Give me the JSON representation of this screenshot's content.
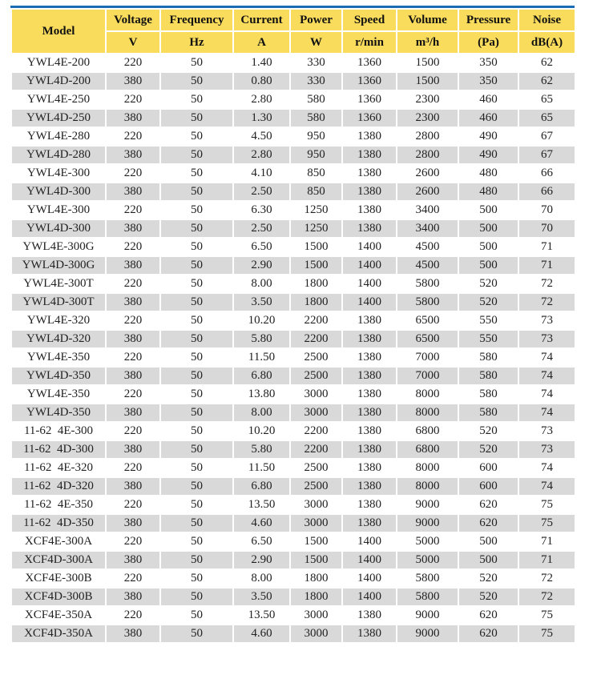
{
  "colors": {
    "header_bg": "#f9dc5c",
    "top_border": "#1b6db3",
    "alt_row": "#d9d9d9"
  },
  "table": {
    "columns": [
      {
        "name": "Model",
        "unit": ""
      },
      {
        "name": "Voltage",
        "unit": "V"
      },
      {
        "name": "Frequency",
        "unit": "Hz"
      },
      {
        "name": "Current",
        "unit": "A"
      },
      {
        "name": "Power",
        "unit": "W"
      },
      {
        "name": "Speed",
        "unit": "r/min"
      },
      {
        "name": "Volume",
        "unit": "m³/h"
      },
      {
        "name": "Pressure",
        "unit": "(Pa)"
      },
      {
        "name": "Noise",
        "unit": "dB(A)"
      }
    ],
    "rows": [
      [
        "YWL4E-200",
        "220",
        "50",
        "1.40",
        "330",
        "1360",
        "1500",
        "350",
        "62"
      ],
      [
        "YWL4D-200",
        "380",
        "50",
        "0.80",
        "330",
        "1360",
        "1500",
        "350",
        "62"
      ],
      [
        "YWL4E-250",
        "220",
        "50",
        "2.80",
        "580",
        "1360",
        "2300",
        "460",
        "65"
      ],
      [
        "YWL4D-250",
        "380",
        "50",
        "1.30",
        "580",
        "1360",
        "2300",
        "460",
        "65"
      ],
      [
        "YWL4E-280",
        "220",
        "50",
        "4.50",
        "950",
        "1380",
        "2800",
        "490",
        "67"
      ],
      [
        "YWL4D-280",
        "380",
        "50",
        "2.80",
        "950",
        "1380",
        "2800",
        "490",
        "67"
      ],
      [
        "YWL4E-300",
        "220",
        "50",
        "4.10",
        "850",
        "1380",
        "2600",
        "480",
        "66"
      ],
      [
        "YWL4D-300",
        "380",
        "50",
        "2.50",
        "850",
        "1380",
        "2600",
        "480",
        "66"
      ],
      [
        "YWL4E-300",
        "220",
        "50",
        "6.30",
        "1250",
        "1380",
        "3400",
        "500",
        "70"
      ],
      [
        "YWL4D-300",
        "380",
        "50",
        "2.50",
        "1250",
        "1380",
        "3400",
        "500",
        "70"
      ],
      [
        "YWL4E-300G",
        "220",
        "50",
        "6.50",
        "1500",
        "1400",
        "4500",
        "500",
        "71"
      ],
      [
        "YWL4D-300G",
        "380",
        "50",
        "2.90",
        "1500",
        "1400",
        "4500",
        "500",
        "71"
      ],
      [
        "YWL4E-300T",
        "220",
        "50",
        "8.00",
        "1800",
        "1400",
        "5800",
        "520",
        "72"
      ],
      [
        "YWL4D-300T",
        "380",
        "50",
        "3.50",
        "1800",
        "1400",
        "5800",
        "520",
        "72"
      ],
      [
        "YWL4E-320",
        "220",
        "50",
        "10.20",
        "2200",
        "1380",
        "6500",
        "550",
        "73"
      ],
      [
        "YWL4D-320",
        "380",
        "50",
        "5.80",
        "2200",
        "1380",
        "6500",
        "550",
        "73"
      ],
      [
        "YWL4E-350",
        "220",
        "50",
        "11.50",
        "2500",
        "1380",
        "7000",
        "580",
        "74"
      ],
      [
        "YWL4D-350",
        "380",
        "50",
        "6.80",
        "2500",
        "1380",
        "7000",
        "580",
        "74"
      ],
      [
        "YWL4E-350",
        "220",
        "50",
        "13.80",
        "3000",
        "1380",
        "8000",
        "580",
        "74"
      ],
      [
        "YWL4D-350",
        "380",
        "50",
        "8.00",
        "3000",
        "1380",
        "8000",
        "580",
        "74"
      ],
      [
        "11-62  4E-300",
        "220",
        "50",
        "10.20",
        "2200",
        "1380",
        "6800",
        "520",
        "73"
      ],
      [
        "11-62  4D-300",
        "380",
        "50",
        "5.80",
        "2200",
        "1380",
        "6800",
        "520",
        "73"
      ],
      [
        "11-62  4E-320",
        "220",
        "50",
        "11.50",
        "2500",
        "1380",
        "8000",
        "600",
        "74"
      ],
      [
        "11-62  4D-320",
        "380",
        "50",
        "6.80",
        "2500",
        "1380",
        "8000",
        "600",
        "74"
      ],
      [
        "11-62  4E-350",
        "220",
        "50",
        "13.50",
        "3000",
        "1380",
        "9000",
        "620",
        "75"
      ],
      [
        "11-62  4D-350",
        "380",
        "50",
        "4.60",
        "3000",
        "1380",
        "9000",
        "620",
        "75"
      ],
      [
        "XCF4E-300A",
        "220",
        "50",
        "6.50",
        "1500",
        "1400",
        "5000",
        "500",
        "71"
      ],
      [
        "XCF4D-300A",
        "380",
        "50",
        "2.90",
        "1500",
        "1400",
        "5000",
        "500",
        "71"
      ],
      [
        "XCF4E-300B",
        "220",
        "50",
        "8.00",
        "1800",
        "1400",
        "5800",
        "520",
        "72"
      ],
      [
        "XCF4D-300B",
        "380",
        "50",
        "3.50",
        "1800",
        "1400",
        "5800",
        "520",
        "72"
      ],
      [
        "XCF4E-350A",
        "220",
        "50",
        "13.50",
        "3000",
        "1380",
        "9000",
        "620",
        "75"
      ],
      [
        "XCF4D-350A",
        "380",
        "50",
        "4.60",
        "3000",
        "1380",
        "9000",
        "620",
        "75"
      ]
    ]
  }
}
